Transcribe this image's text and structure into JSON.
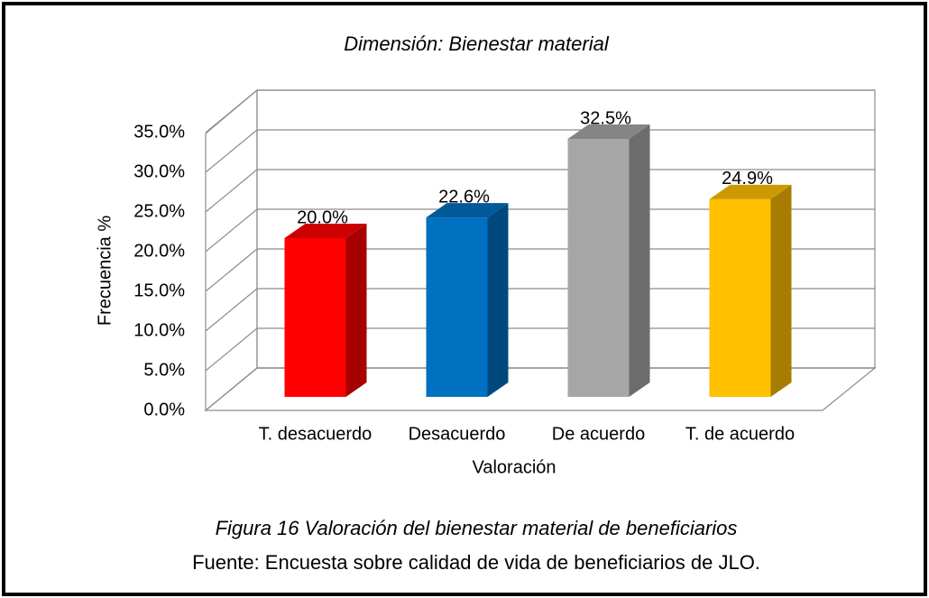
{
  "chart_data": {
    "type": "bar3d",
    "title": "Dimensión: Bienestar material",
    "categories": [
      "T. desacuerdo",
      "Desacuerdo",
      "De acuerdo",
      "T. de acuerdo"
    ],
    "values": [
      20.0,
      22.6,
      32.5,
      24.9
    ],
    "value_labels": [
      "20.0%",
      "22.6%",
      "32.5%",
      "24.9%"
    ],
    "colors": [
      "#ff0000",
      "#0070c0",
      "#a6a6a6",
      "#ffc000"
    ],
    "ylim": [
      0,
      35
    ],
    "yticks": [
      {
        "value": 0,
        "label": "0.0%"
      },
      {
        "value": 5,
        "label": "5.0%"
      },
      {
        "value": 10,
        "label": "10.0%"
      },
      {
        "value": 15,
        "label": "15.0%"
      },
      {
        "value": 20,
        "label": "20.0%"
      },
      {
        "value": 25,
        "label": "25.0%"
      },
      {
        "value": 30,
        "label": "30.0%"
      },
      {
        "value": 35,
        "label": "35.0%"
      }
    ],
    "xlabel": "Valoración",
    "ylabel": "Frecuencia %",
    "grid": true
  },
  "caption": {
    "figure": "Figura 16 Valoración del bienestar material de beneficiarios",
    "source": "Fuente: Encuesta sobre calidad de vida de beneficiarios de JLO."
  }
}
